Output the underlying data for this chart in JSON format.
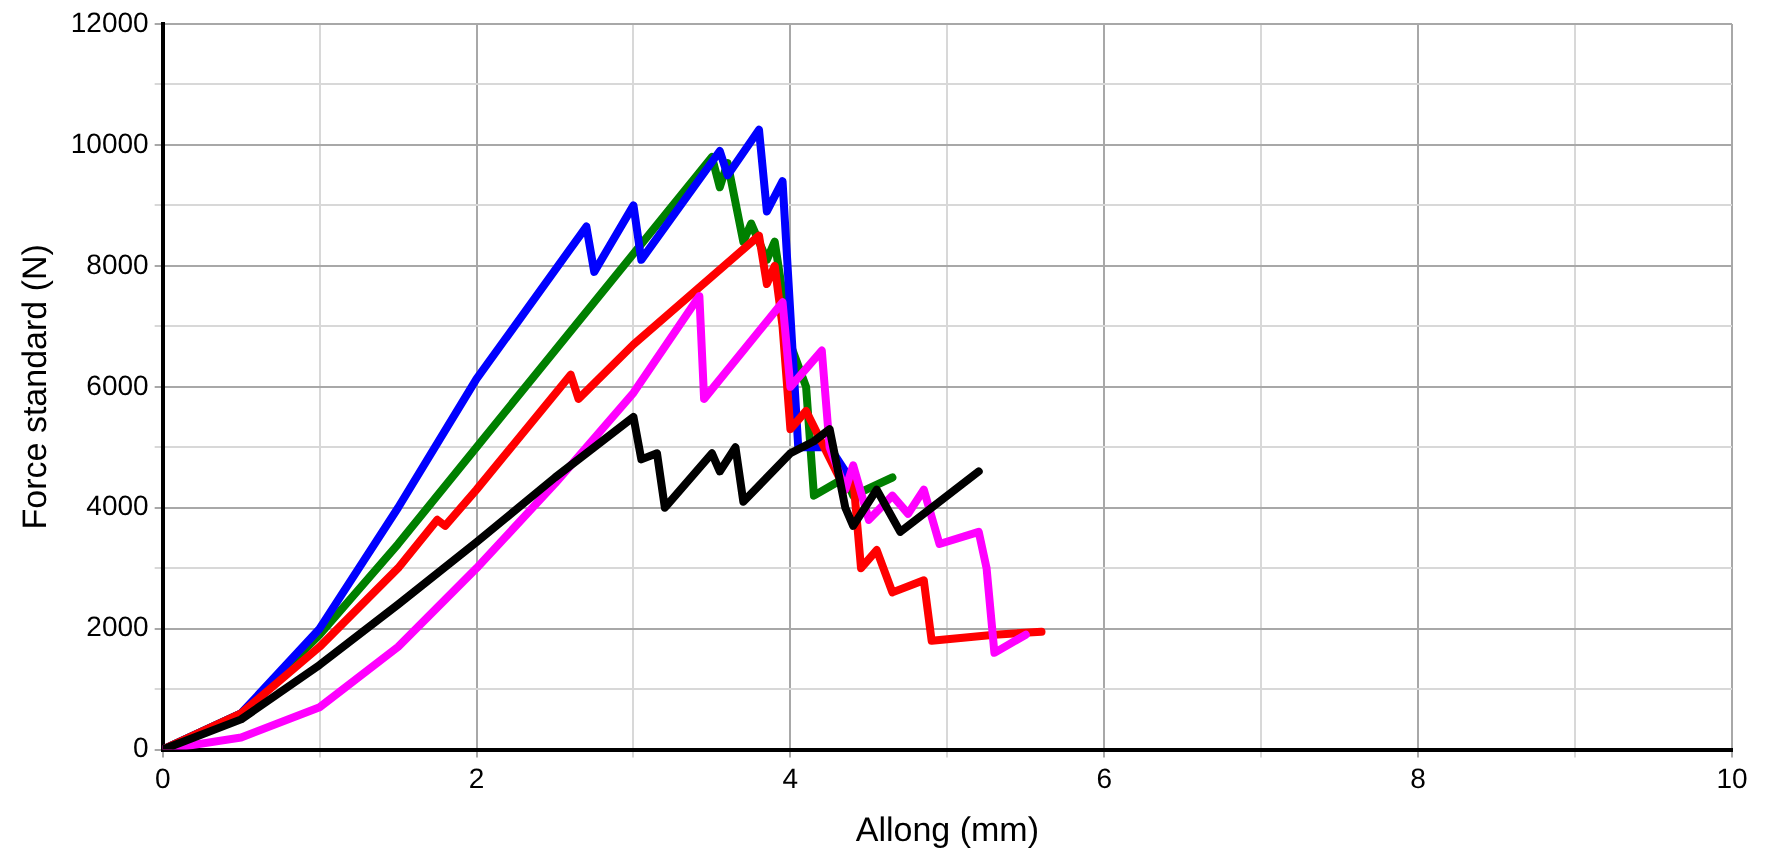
{
  "chart_data": {
    "type": "line",
    "xlabel": "Allong (mm)",
    "ylabel": "Force standard (N)",
    "xlim": [
      0,
      10
    ],
    "ylim": [
      0,
      12000
    ],
    "xticks": [
      0,
      {
        "value": 1,
        "label": null
      },
      2,
      {
        "value": 3,
        "label": null
      },
      4,
      {
        "value": 5,
        "label": null
      },
      6,
      {
        "value": 7,
        "label": null
      },
      8,
      {
        "value": 9,
        "label": null
      },
      10
    ],
    "yticks": [
      0,
      {
        "value": 1000,
        "label": null
      },
      2000,
      {
        "value": 3000,
        "label": null
      },
      4000,
      {
        "value": 5000,
        "label": null
      },
      6000,
      {
        "value": 7000,
        "label": null
      },
      8000,
      {
        "value": 9000,
        "label": null
      },
      10000,
      {
        "value": 11000,
        "label": null
      },
      12000
    ],
    "grid": true,
    "legend": false,
    "marker": "none",
    "line_style": "solid",
    "series": [
      {
        "color": "#000000",
        "x": [
          0,
          0.5,
          1,
          1.5,
          2,
          2.5,
          3,
          3.05,
          3.15,
          3.2,
          3.5,
          3.55,
          3.65,
          3.7,
          4,
          4.15,
          4.25,
          4.35,
          4.4,
          4.55,
          4.7,
          5.2
        ],
        "values": [
          0,
          500,
          1400,
          2400,
          3430,
          4500,
          5500,
          4800,
          4900,
          4000,
          4900,
          4600,
          5000,
          4100,
          4900,
          5100,
          5300,
          4000,
          3700,
          4300,
          3600,
          4600
        ]
      },
      {
        "color": "#ff00ff",
        "x": [
          0,
          0.5,
          1,
          1.5,
          2,
          2.5,
          3,
          3.42,
          3.45,
          3.95,
          4,
          4.2,
          4.25,
          4.35,
          4.4,
          4.5,
          4.65,
          4.75,
          4.85,
          4.95,
          5.2,
          5.25,
          5.3,
          5.5
        ],
        "values": [
          0,
          200,
          700,
          1700,
          3000,
          4400,
          5900,
          7500,
          5800,
          7400,
          6000,
          6600,
          5000,
          4300,
          4700,
          3800,
          4200,
          3900,
          4300,
          3400,
          3600,
          3000,
          1600,
          1900
        ]
      },
      {
        "color": "#ff0000",
        "x": [
          0,
          0.5,
          1,
          1.5,
          1.75,
          1.8,
          2,
          2.6,
          2.65,
          3,
          3.8,
          3.85,
          3.9,
          3.95,
          4,
          4.1,
          4.35,
          4.4,
          4.45,
          4.55,
          4.65,
          4.85,
          4.9,
          5.3,
          5.6
        ],
        "values": [
          0,
          600,
          1700,
          3000,
          3800,
          3700,
          4300,
          6200,
          5800,
          6700,
          8500,
          7700,
          8000,
          7000,
          5300,
          5600,
          4300,
          4500,
          3000,
          3300,
          2600,
          2800,
          1800,
          1900,
          1950
        ]
      },
      {
        "color": "#0000ff",
        "x": [
          0,
          0.5,
          1,
          1.5,
          2,
          2.7,
          2.75,
          3,
          3.05,
          3.55,
          3.6,
          3.8,
          3.85,
          3.95,
          4.05,
          4.25,
          4.4
        ],
        "values": [
          0,
          600,
          2000,
          4000,
          6130,
          8650,
          7900,
          9000,
          8100,
          9900,
          9500,
          10250,
          8900,
          9400,
          5000,
          5000,
          4400
        ]
      },
      {
        "color": "#008000",
        "x": [
          0,
          0.5,
          1,
          1.5,
          2,
          2.5,
          3,
          3.5,
          3.55,
          3.6,
          3.7,
          3.75,
          3.85,
          3.9,
          4,
          4.1,
          4.15,
          4.35,
          4.4,
          4.65
        ],
        "values": [
          0,
          600,
          1900,
          3400,
          5000,
          6600,
          8200,
          9800,
          9300,
          9700,
          8400,
          8700,
          8100,
          8400,
          6700,
          6000,
          4200,
          4500,
          4200,
          4500
        ]
      }
    ]
  }
}
